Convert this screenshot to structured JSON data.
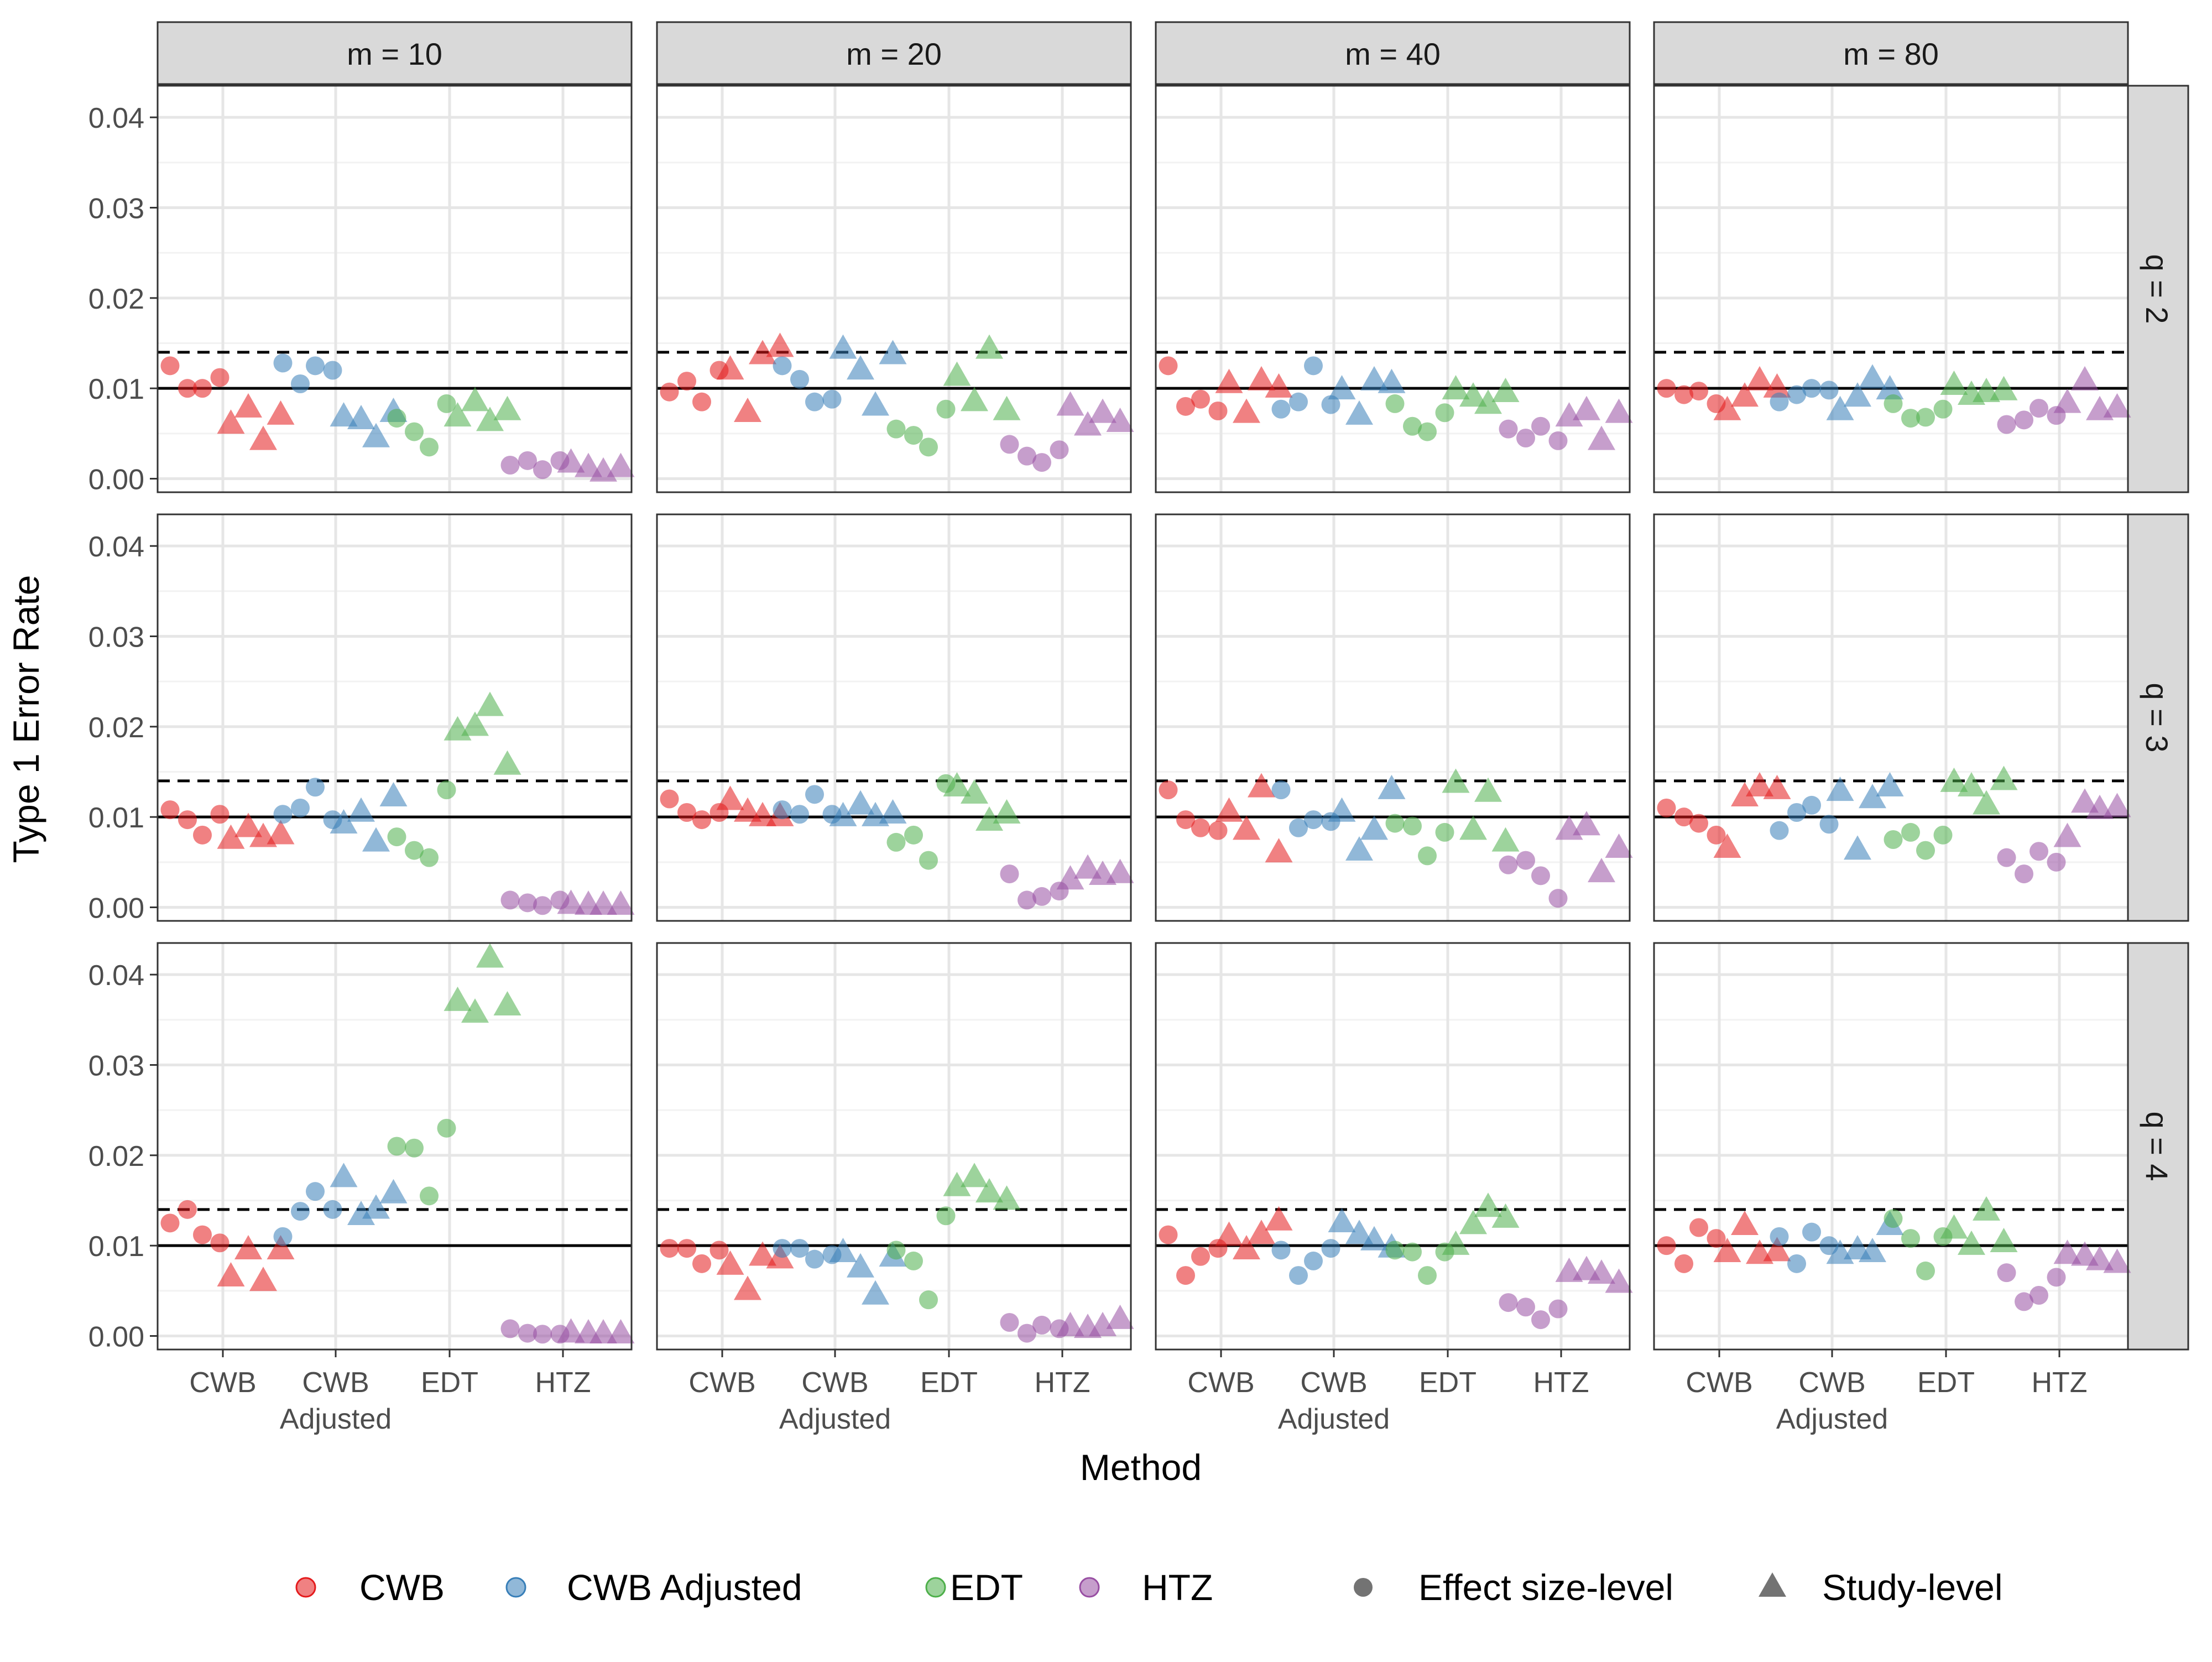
{
  "chart_data": {
    "type": "scatter",
    "ylabel": "Type 1 Error Rate",
    "xlabel": "Method",
    "ylim": [
      -0.0015,
      0.0435
    ],
    "yticks": [
      0.0,
      0.01,
      0.02,
      0.03,
      0.04
    ],
    "ytick_labels": [
      "0.00",
      "0.01",
      "0.02",
      "0.03",
      "0.04"
    ],
    "categories": [
      "CWB",
      "CWB Adjusted",
      "EDT",
      "HTZ"
    ],
    "category_labels": [
      [
        "CWB"
      ],
      [
        "CWB",
        "Adjusted"
      ],
      [
        "EDT"
      ],
      [
        "HTZ"
      ]
    ],
    "col_facets": [
      "m = 10",
      "m = 20",
      "m = 40",
      "m = 80"
    ],
    "row_facets": [
      "q = 2",
      "q = 3",
      "q = 4"
    ],
    "reference_lines": [
      {
        "y": 0.01,
        "style": "solid"
      },
      {
        "y": 0.014,
        "style": "dashed"
      }
    ],
    "grid": true,
    "legend_position": "bottom",
    "legend_items": [
      {
        "label": "CWB",
        "kind": "color",
        "color": "#E41A1C"
      },
      {
        "label": "CWB Adjusted",
        "kind": "color",
        "color": "#377EB8"
      },
      {
        "label": "EDT",
        "kind": "color",
        "color": "#4DAF4A"
      },
      {
        "label": "HTZ",
        "kind": "color",
        "color": "#984EA3"
      },
      {
        "label": "Effect size-level",
        "kind": "shape",
        "shape": "circle"
      },
      {
        "label": "Study-level",
        "kind": "shape",
        "shape": "triangle"
      }
    ],
    "colors": {
      "CWB": "#E41A1C",
      "CWB Adjusted": "#377EB8",
      "EDT": "#4DAF4A",
      "HTZ": "#984EA3"
    },
    "panels": [
      {
        "m": "m = 10",
        "q": "q = 2",
        "series": {
          "CWB": {
            "effect": [
              0.0125,
              0.01,
              0.01,
              0.0112
            ],
            "study": [
              0.006,
              0.0078,
              0.0042,
              0.007
            ]
          },
          "CWB Adjusted": {
            "effect": [
              0.0128,
              0.0105,
              0.0125,
              0.012
            ],
            "study": [
              0.0068,
              0.0065,
              0.0045,
              0.0073
            ]
          },
          "EDT": {
            "effect": [
              0.0067,
              0.0052,
              0.0035,
              0.0083
            ],
            "study": [
              0.0068,
              0.0085,
              0.0063,
              0.0075
            ]
          },
          "HTZ": {
            "effect": [
              0.0015,
              0.002,
              0.001,
              0.002
            ],
            "study": [
              0.0017,
              0.0012,
              0.0007,
              0.0012
            ]
          }
        }
      },
      {
        "m": "m = 20",
        "q": "q = 2",
        "series": {
          "CWB": {
            "effect": [
              0.0096,
              0.0108,
              0.0085,
              0.012
            ],
            "study": [
              0.012,
              0.0073,
              0.0137,
              0.0145
            ]
          },
          "CWB Adjusted": {
            "effect": [
              0.0125,
              0.011,
              0.0085,
              0.0088
            ],
            "study": [
              0.0143,
              0.012,
              0.008,
              0.0137
            ]
          },
          "EDT": {
            "effect": [
              0.0055,
              0.0048,
              0.0035,
              0.0077
            ],
            "study": [
              0.0113,
              0.0085,
              0.0143,
              0.0075
            ]
          },
          "HTZ": {
            "effect": [
              0.0038,
              0.0025,
              0.0018,
              0.0032
            ],
            "study": [
              0.008,
              0.0058,
              0.0072,
              0.0062
            ]
          }
        }
      },
      {
        "m": "m = 40",
        "q": "q = 2",
        "series": {
          "CWB": {
            "effect": [
              0.0125,
              0.008,
              0.0088,
              0.0075
            ],
            "study": [
              0.0105,
              0.0072,
              0.0108,
              0.01
            ]
          },
          "CWB Adjusted": {
            "effect": [
              0.0077,
              0.0085,
              0.0125,
              0.0082
            ],
            "study": [
              0.0098,
              0.007,
              0.0108,
              0.0105
            ]
          },
          "EDT": {
            "effect": [
              0.0083,
              0.0058,
              0.0052,
              0.0073
            ],
            "study": [
              0.0098,
              0.009,
              0.0082,
              0.0095
            ]
          },
          "HTZ": {
            "effect": [
              0.0055,
              0.0045,
              0.0058,
              0.0042
            ],
            "study": [
              0.0068,
              0.0075,
              0.0042,
              0.0072
            ]
          }
        }
      },
      {
        "m": "m = 80",
        "q": "q = 2",
        "series": {
          "CWB": {
            "effect": [
              0.01,
              0.0093,
              0.0097,
              0.0083
            ],
            "study": [
              0.0075,
              0.009,
              0.0108,
              0.01
            ]
          },
          "CWB Adjusted": {
            "effect": [
              0.0085,
              0.0093,
              0.01,
              0.0098
            ],
            "study": [
              0.0075,
              0.009,
              0.011,
              0.0098
            ]
          },
          "EDT": {
            "effect": [
              0.0083,
              0.0067,
              0.0068,
              0.0077
            ],
            "study": [
              0.0103,
              0.0092,
              0.0095,
              0.0097
            ]
          },
          "HTZ": {
            "effect": [
              0.006,
              0.0065,
              0.0078,
              0.007
            ],
            "study": [
              0.0083,
              0.0108,
              0.0075,
              0.0078
            ]
          }
        }
      },
      {
        "m": "m = 10",
        "q": "q = 3",
        "series": {
          "CWB": {
            "effect": [
              0.0108,
              0.0097,
              0.008,
              0.0103
            ],
            "study": [
              0.0075,
              0.0088,
              0.0077,
              0.008
            ]
          },
          "CWB Adjusted": {
            "effect": [
              0.0103,
              0.011,
              0.0133,
              0.0097
            ],
            "study": [
              0.0092,
              0.0105,
              0.0072,
              0.0122
            ]
          },
          "EDT": {
            "effect": [
              0.0078,
              0.0063,
              0.0055,
              0.013
            ],
            "study": [
              0.0195,
              0.02,
              0.0222,
              0.0157
            ]
          },
          "HTZ": {
            "effect": [
              0.0008,
              0.0005,
              0.0002,
              0.0008
            ],
            "study": [
              0.0003,
              0.0002,
              0.0002,
              0.0002
            ]
          }
        }
      },
      {
        "m": "m = 20",
        "q": "q = 3",
        "series": {
          "CWB": {
            "effect": [
              0.012,
              0.0105,
              0.0097,
              0.0105
            ],
            "study": [
              0.0118,
              0.0105,
              0.01,
              0.01
            ]
          },
          "CWB Adjusted": {
            "effect": [
              0.0108,
              0.0103,
              0.0125,
              0.0103
            ],
            "study": [
              0.01,
              0.0113,
              0.01,
              0.0103
            ]
          },
          "EDT": {
            "effect": [
              0.0072,
              0.008,
              0.0052,
              0.0137
            ],
            "study": [
              0.0133,
              0.0125,
              0.0095,
              0.0103
            ]
          },
          "HTZ": {
            "effect": [
              0.0037,
              0.0008,
              0.0012,
              0.0018
            ],
            "study": [
              0.003,
              0.0042,
              0.0035,
              0.0037
            ]
          }
        }
      },
      {
        "m": "m = 40",
        "q": "q = 3",
        "series": {
          "CWB": {
            "effect": [
              0.013,
              0.0097,
              0.0088,
              0.0085
            ],
            "study": [
              0.0105,
              0.0085,
              0.0132,
              0.006
            ]
          },
          "CWB Adjusted": {
            "effect": [
              0.013,
              0.0088,
              0.0097,
              0.0095
            ],
            "study": [
              0.0105,
              0.0062,
              0.0085,
              0.013
            ]
          },
          "EDT": {
            "effect": [
              0.0093,
              0.009,
              0.0057,
              0.0083
            ],
            "study": [
              0.0137,
              0.0085,
              0.0127,
              0.0072
            ]
          },
          "HTZ": {
            "effect": [
              0.0047,
              0.0052,
              0.0035,
              0.001
            ],
            "study": [
              0.0085,
              0.009,
              0.0038,
              0.0065
            ]
          }
        }
      },
      {
        "m": "m = 80",
        "q": "q = 3",
        "series": {
          "CWB": {
            "effect": [
              0.011,
              0.01,
              0.0093,
              0.008
            ],
            "study": [
              0.0065,
              0.0122,
              0.0133,
              0.013
            ]
          },
          "CWB Adjusted": {
            "effect": [
              0.0085,
              0.0105,
              0.0113,
              0.0092
            ],
            "study": [
              0.0128,
              0.0063,
              0.012,
              0.0133
            ]
          },
          "EDT": {
            "effect": [
              0.0075,
              0.0083,
              0.0063,
              0.008
            ],
            "study": [
              0.0138,
              0.0133,
              0.0113,
              0.014
            ]
          },
          "HTZ": {
            "effect": [
              0.0055,
              0.0037,
              0.0062,
              0.005
            ],
            "study": [
              0.0077,
              0.0115,
              0.0108,
              0.011
            ]
          }
        }
      },
      {
        "m": "m = 10",
        "q": "q = 4",
        "series": {
          "CWB": {
            "effect": [
              0.0125,
              0.014,
              0.0112,
              0.0103
            ],
            "study": [
              0.0065,
              0.0095,
              0.006,
              0.0095
            ]
          },
          "CWB Adjusted": {
            "effect": [
              0.011,
              0.0138,
              0.016,
              0.014
            ],
            "study": [
              0.0175,
              0.0133,
              0.014,
              0.0157
            ]
          },
          "EDT": {
            "effect": [
              0.021,
              0.0208,
              0.0155,
              0.023
            ],
            "study": [
              0.037,
              0.0357,
              0.0418,
              0.0365
            ]
          },
          "HTZ": {
            "effect": [
              0.0008,
              0.0003,
              0.0002,
              0.0002
            ],
            "study": [
              0.0003,
              0.0002,
              0.0002,
              0.0002
            ]
          }
        }
      },
      {
        "m": "m = 20",
        "q": "q = 4",
        "series": {
          "CWB": {
            "effect": [
              0.0097,
              0.0097,
              0.008,
              0.0095
            ],
            "study": [
              0.0078,
              0.005,
              0.0088,
              0.0085
            ]
          },
          "CWB Adjusted": {
            "effect": [
              0.0097,
              0.0097,
              0.0085,
              0.009
            ],
            "study": [
              0.0092,
              0.0075,
              0.0045,
              0.0087
            ]
          },
          "EDT": {
            "effect": [
              0.0095,
              0.0083,
              0.004,
              0.0133
            ],
            "study": [
              0.0165,
              0.0175,
              0.0158,
              0.015
            ]
          },
          "HTZ": {
            "effect": [
              0.0015,
              0.0003,
              0.0012,
              0.0008
            ],
            "study": [
              0.001,
              0.0008,
              0.001,
              0.0018
            ]
          }
        }
      },
      {
        "m": "m = 40",
        "q": "q = 4",
        "series": {
          "CWB": {
            "effect": [
              0.0112,
              0.0067,
              0.0088,
              0.0097
            ],
            "study": [
              0.011,
              0.0095,
              0.0112,
              0.0127
            ]
          },
          "CWB Adjusted": {
            "effect": [
              0.0095,
              0.0067,
              0.0083,
              0.0097
            ],
            "study": [
              0.0125,
              0.0112,
              0.0105,
              0.0097
            ]
          },
          "EDT": {
            "effect": [
              0.0095,
              0.0093,
              0.0067,
              0.0093
            ],
            "study": [
              0.01,
              0.0123,
              0.0142,
              0.013
            ]
          },
          "HTZ": {
            "effect": [
              0.0037,
              0.0032,
              0.0018,
              0.003
            ],
            "study": [
              0.007,
              0.0072,
              0.0068,
              0.0058
            ]
          }
        }
      },
      {
        "m": "m = 80",
        "q": "q = 4",
        "series": {
          "CWB": {
            "effect": [
              0.01,
              0.008,
              0.012,
              0.0108
            ],
            "study": [
              0.0092,
              0.0122,
              0.009,
              0.0093
            ]
          },
          "CWB Adjusted": {
            "effect": [
              0.011,
              0.008,
              0.0115,
              0.01
            ],
            "study": [
              0.009,
              0.0095,
              0.0092,
              0.0122
            ]
          },
          "EDT": {
            "effect": [
              0.013,
              0.0108,
              0.0072,
              0.011
            ],
            "study": [
              0.0118,
              0.01,
              0.0138,
              0.0103
            ]
          },
          "HTZ": {
            "effect": [
              0.007,
              0.0038,
              0.0045,
              0.0065
            ],
            "study": [
              0.009,
              0.0088,
              0.0083,
              0.008
            ]
          }
        }
      }
    ]
  }
}
